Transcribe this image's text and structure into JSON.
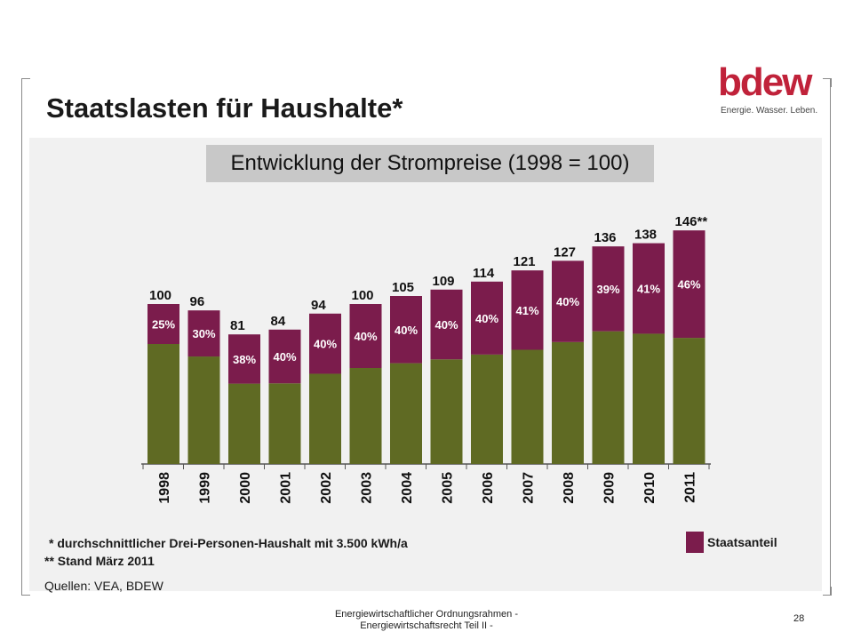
{
  "slide": {
    "title": "Staatslasten für Haushalte*",
    "logo": {
      "word": "bdew",
      "tagline": "Energie. Wasser. Leben."
    },
    "subtitle": "Entwicklung der Strompreise (1998 = 100)",
    "notes": {
      "note1": "* durchschnittlicher Drei-Personen-Haushalt mit 3.500 kWh/a",
      "note2": "** Stand März 2011",
      "sources": "Quellen: VEA, BDEW"
    },
    "footer": {
      "line1": "Energiewirtschaftlicher Ordnungsrahmen -",
      "line2": "Energiewirtschaftsrecht Teil II -",
      "page": "28"
    },
    "colors": {
      "state_share": "#7b1c4c",
      "remainder": "#5f6a23",
      "logo": "#c0223a"
    }
  },
  "chart_data": {
    "type": "bar",
    "stacked": true,
    "categories": [
      "1998",
      "1999",
      "2000",
      "2001",
      "2002",
      "2003",
      "2004",
      "2005",
      "2006",
      "2007",
      "2008",
      "2009",
      "2010",
      "2011"
    ],
    "totals": [
      100,
      96,
      81,
      84,
      94,
      100,
      105,
      109,
      114,
      121,
      127,
      136,
      138,
      146
    ],
    "total_labels": [
      "100",
      "96",
      "81",
      "84",
      "94",
      "100",
      "105",
      "109",
      "114",
      "121",
      "127",
      "136",
      "138",
      "146**"
    ],
    "state_share_percent": [
      25,
      30,
      38,
      40,
      40,
      40,
      40,
      40,
      40,
      41,
      40,
      39,
      41,
      46
    ],
    "share_labels": [
      "25%",
      "30%",
      "38%",
      "40%",
      "40%",
      "40%",
      "40%",
      "40%",
      "40%",
      "41%",
      "40%",
      "39%",
      "41%",
      "46%"
    ],
    "series": [
      {
        "name": "Staatsanteil",
        "color": "#7b1c4c"
      },
      {
        "color": "#5f6a23"
      }
    ],
    "legend": [
      "Staatsanteil"
    ],
    "legend_position": "bottom-right",
    "ylim": [
      0,
      150
    ],
    "grid": false
  }
}
